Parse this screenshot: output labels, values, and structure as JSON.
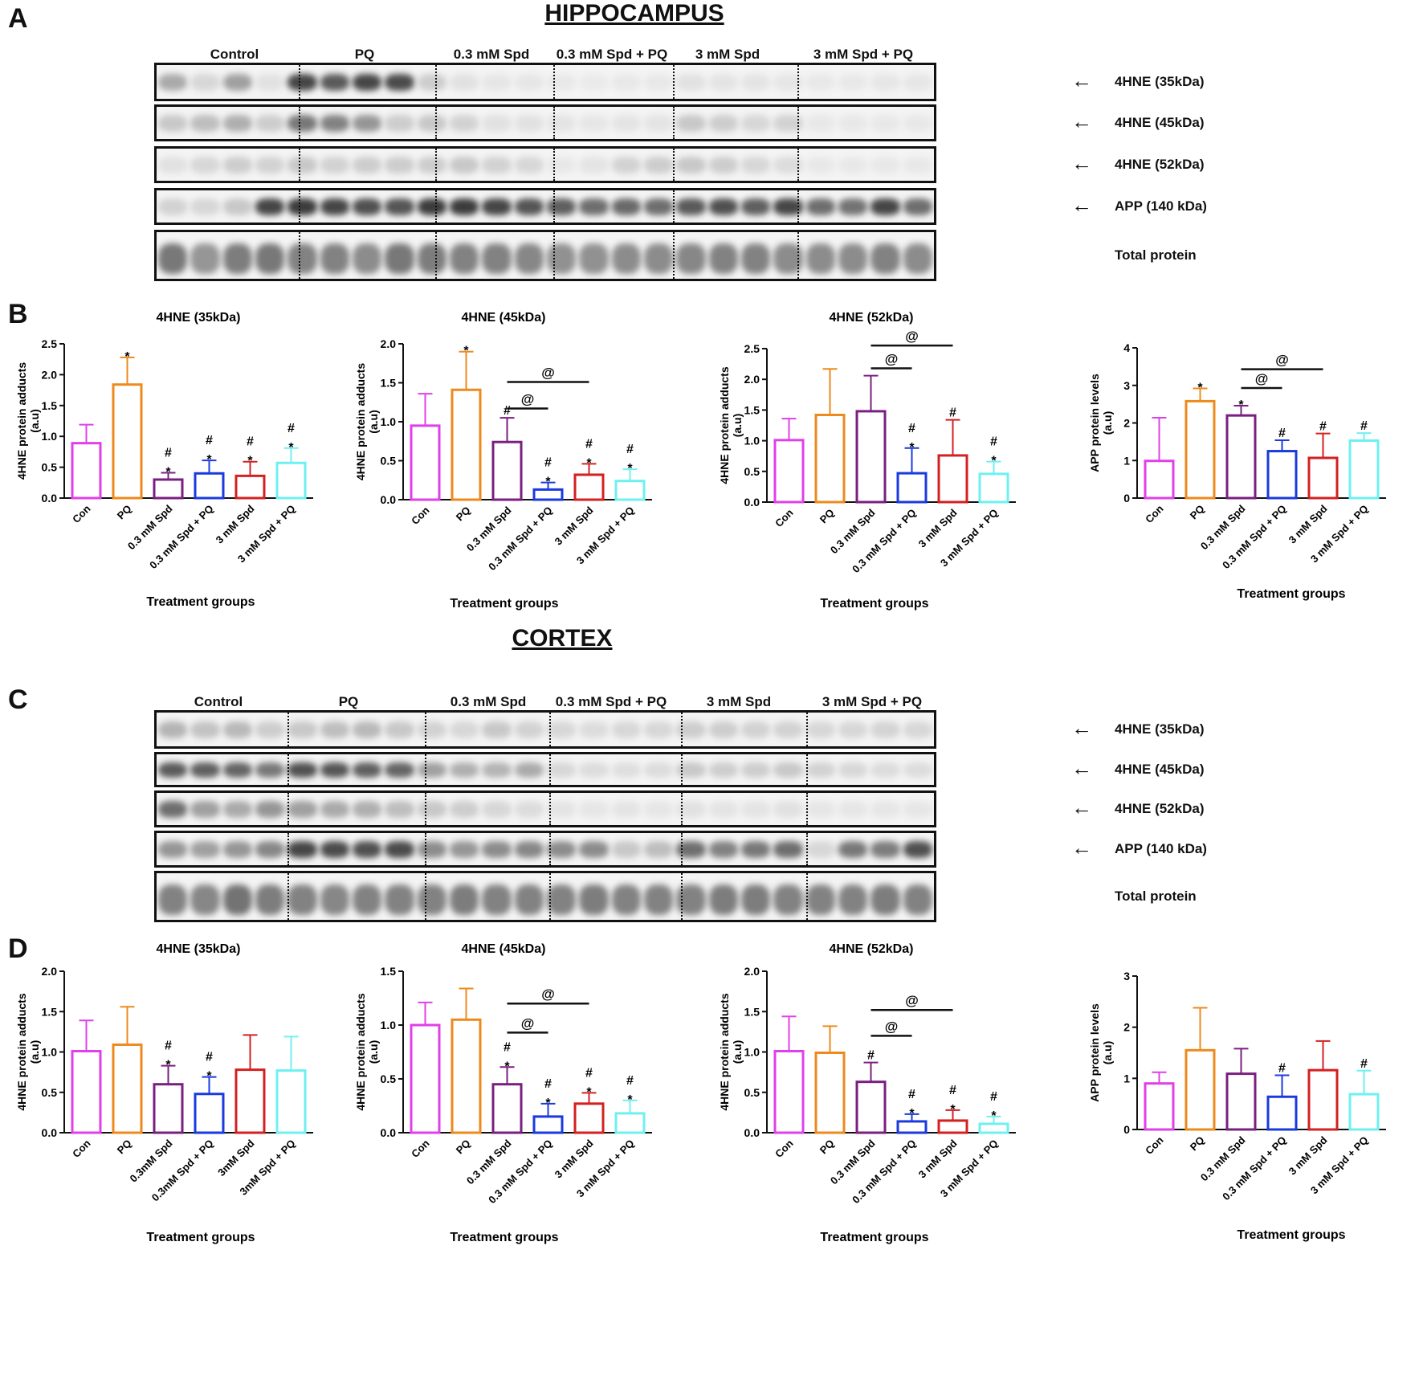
{
  "hippocampus": {
    "panel_letter": "A",
    "title": "HIPPOCAMPUS",
    "lane_labels": [
      "Control",
      "PQ",
      "0.3 mM Spd",
      "0.3 mM Spd + PQ",
      "3 mM Spd",
      "3 mM Spd + PQ"
    ],
    "band_labels": [
      "4HNE (35kDa)",
      "4HNE (45kDa)",
      "4HNE (52kDa)",
      "APP (140 kDa)",
      "Total protein"
    ]
  },
  "hippocampus_charts_letter": "B",
  "cortex": {
    "panel_letter": "C",
    "title": "CORTEX",
    "lane_labels": [
      "Control",
      "PQ",
      "0.3 mM Spd",
      "0.3 mM Spd + PQ",
      "3 mM Spd",
      "3 mM Spd + PQ"
    ],
    "band_labels": [
      "4HNE (35kDa)",
      "4HNE (45kDa)",
      "4HNE (52kDa)",
      "APP (140 kDa)",
      "Total protein"
    ]
  },
  "cortex_charts_letter": "D",
  "colors": [
    "#e040e8",
    "#ee8a1c",
    "#7a1f80",
    "#1a3ae0",
    "#d42020",
    "#6ff0f0"
  ],
  "chart_data": [
    {
      "type": "bar",
      "title": "4HNE (35kDa)",
      "ylabel": "4HNE protein adducts (a.u)",
      "xlabel": "Treatment groups",
      "categories": [
        "Con",
        "PQ",
        "0.3 mM Spd",
        "0.3 mM Spd + PQ",
        "3 mM Spd",
        "3 mM Spd + PQ"
      ],
      "values": [
        0.89,
        1.84,
        0.3,
        0.4,
        0.36,
        0.57
      ],
      "errors": [
        0.3,
        0.44,
        0.11,
        0.21,
        0.23,
        0.24
      ],
      "ylim": [
        0,
        2.5
      ],
      "yticks": [
        0,
        0.5,
        1.0,
        1.5,
        2.0,
        2.5
      ],
      "marks": [
        "",
        "*",
        "#\n*",
        "#\n*",
        "#\n*",
        "#\n*"
      ],
      "brackets": []
    },
    {
      "type": "bar",
      "title": "4HNE (45kDa)",
      "ylabel": "4HNE protein adducts (a.u)",
      "xlabel": "Treatment groups",
      "categories": [
        "Con",
        "PQ",
        "0.3 mM Spd",
        "0.3 mM Spd + PQ",
        "3 mM Spd",
        "3 mM Spd + PQ"
      ],
      "values": [
        0.95,
        1.41,
        0.74,
        0.13,
        0.32,
        0.24
      ],
      "errors": [
        0.41,
        0.49,
        0.31,
        0.09,
        0.14,
        0.15
      ],
      "ylim": [
        0,
        2.0
      ],
      "yticks": [
        0,
        0.5,
        1.0,
        1.5,
        2.0
      ],
      "marks": [
        "",
        "*",
        "#",
        "#\n*",
        "#\n*",
        "#\n*"
      ],
      "brackets": [
        {
          "from": 2,
          "to": 3,
          "label": "@",
          "y": 1.17
        },
        {
          "from": 2,
          "to": 4,
          "label": "@",
          "y": 1.51
        }
      ]
    },
    {
      "type": "bar",
      "title": "4HNE (52kDa)",
      "ylabel": "4HNE protein adducts (a.u)",
      "xlabel": "Treatment groups",
      "categories": [
        "Con",
        "PQ",
        "0.3 mM Spd",
        "0.3 mM Spd + PQ",
        "3 mM Spd",
        "3 mM Spd + PQ"
      ],
      "values": [
        1.01,
        1.42,
        1.48,
        0.47,
        0.76,
        0.46
      ],
      "errors": [
        0.35,
        0.75,
        0.58,
        0.41,
        0.58,
        0.2
      ],
      "ylim": [
        0,
        2.5
      ],
      "yticks": [
        0,
        0.5,
        1.0,
        1.5,
        2.0,
        2.5
      ],
      "marks": [
        "",
        "",
        "",
        "#\n*",
        "#",
        "#\n*"
      ],
      "brackets": [
        {
          "from": 2,
          "to": 3,
          "label": "@",
          "y": 2.18
        },
        {
          "from": 2,
          "to": 4,
          "label": "@",
          "y": 2.55
        }
      ]
    },
    {
      "type": "bar",
      "title": "",
      "ylabel": "APP protein levels (a.u)",
      "xlabel": "Treatment groups",
      "categories": [
        "Con",
        "PQ",
        "0.3 mM Spd",
        "0.3 mM Spd + PQ",
        "3 mM Spd",
        "3 mM Spd + PQ"
      ],
      "values": [
        0.99,
        2.58,
        2.2,
        1.25,
        1.07,
        1.53
      ],
      "errors": [
        1.15,
        0.34,
        0.26,
        0.29,
        0.65,
        0.2
      ],
      "ylim": [
        0,
        4
      ],
      "yticks": [
        0,
        1,
        2,
        3,
        4
      ],
      "marks": [
        "",
        "*",
        "*",
        "#",
        "#",
        "#"
      ],
      "brackets": [
        {
          "from": 2,
          "to": 3,
          "label": "@",
          "y": 2.93
        },
        {
          "from": 2,
          "to": 4,
          "label": "@",
          "y": 3.43
        }
      ]
    },
    {
      "type": "bar",
      "title": "4HNE (35kDa)",
      "ylabel": "4HNE protein adducts (a.u)",
      "xlabel": "Treatment groups",
      "categories": [
        "Con",
        "PQ",
        "0.3mM Spd",
        "0.3mM Spd + PQ",
        "3mM Spd",
        "3mM Spd + PQ"
      ],
      "values": [
        1.01,
        1.09,
        0.6,
        0.48,
        0.78,
        0.77
      ],
      "errors": [
        0.38,
        0.47,
        0.23,
        0.21,
        0.43,
        0.42
      ],
      "ylim": [
        0,
        2.0
      ],
      "yticks": [
        0,
        0.5,
        1.0,
        1.5,
        2.0
      ],
      "marks": [
        "",
        "",
        "#\n*",
        "#\n*",
        "",
        ""
      ],
      "brackets": []
    },
    {
      "type": "bar",
      "title": "4HNE (45kDa)",
      "ylabel": "4HNE protein adducts (a.u)",
      "xlabel": "Treatment groups",
      "categories": [
        "Con",
        "PQ",
        "0.3 mM Spd",
        "0.3 mM Spd + PQ",
        "3 mM Spd",
        "3 mM Spd + PQ"
      ],
      "values": [
        1.0,
        1.05,
        0.45,
        0.15,
        0.27,
        0.18
      ],
      "errors": [
        0.21,
        0.29,
        0.16,
        0.12,
        0.1,
        0.12
      ],
      "ylim": [
        0,
        1.5
      ],
      "yticks": [
        0,
        0.5,
        1.0,
        1.5
      ],
      "marks": [
        "",
        "",
        "#\n*",
        "#\n*",
        "#\n*",
        "#\n*"
      ],
      "brackets": [
        {
          "from": 2,
          "to": 3,
          "label": "@",
          "y": 0.93
        },
        {
          "from": 2,
          "to": 4,
          "label": "@",
          "y": 1.2
        }
      ]
    },
    {
      "type": "bar",
      "title": "4HNE (52kDa)",
      "ylabel": "4HNE protein adducts (a.u)",
      "xlabel": "Treatment groups",
      "categories": [
        "Con",
        "PQ",
        "0.3 mM Spd",
        "0.3 mM Spd + PQ",
        "3 mM Spd",
        "3 mM Spd + PQ"
      ],
      "values": [
        1.01,
        0.99,
        0.63,
        0.14,
        0.15,
        0.11
      ],
      "errors": [
        0.43,
        0.33,
        0.24,
        0.09,
        0.13,
        0.09
      ],
      "ylim": [
        0,
        2.0
      ],
      "yticks": [
        0,
        0.5,
        1.0,
        1.5,
        2.0
      ],
      "marks": [
        "",
        "",
        "#",
        "#\n*",
        "#\n*",
        "#\n*"
      ],
      "brackets": [
        {
          "from": 2,
          "to": 3,
          "label": "@",
          "y": 1.2
        },
        {
          "from": 2,
          "to": 4,
          "label": "@",
          "y": 1.52
        }
      ]
    },
    {
      "type": "bar",
      "title": "",
      "ylabel": "APP protein levels (a.u)",
      "xlabel": "Treatment groups",
      "categories": [
        "Con",
        "PQ",
        "0.3 mM Spd",
        "0.3 mM Spd + PQ",
        "3 mM Spd",
        "3 mM Spd + PQ"
      ],
      "values": [
        0.9,
        1.55,
        1.09,
        0.64,
        1.16,
        0.69
      ],
      "errors": [
        0.22,
        0.83,
        0.49,
        0.42,
        0.57,
        0.46
      ],
      "ylim": [
        0,
        3
      ],
      "yticks": [
        0,
        1,
        2,
        3
      ],
      "marks": [
        "",
        "",
        "",
        "#",
        "",
        "#"
      ],
      "brackets": []
    }
  ]
}
